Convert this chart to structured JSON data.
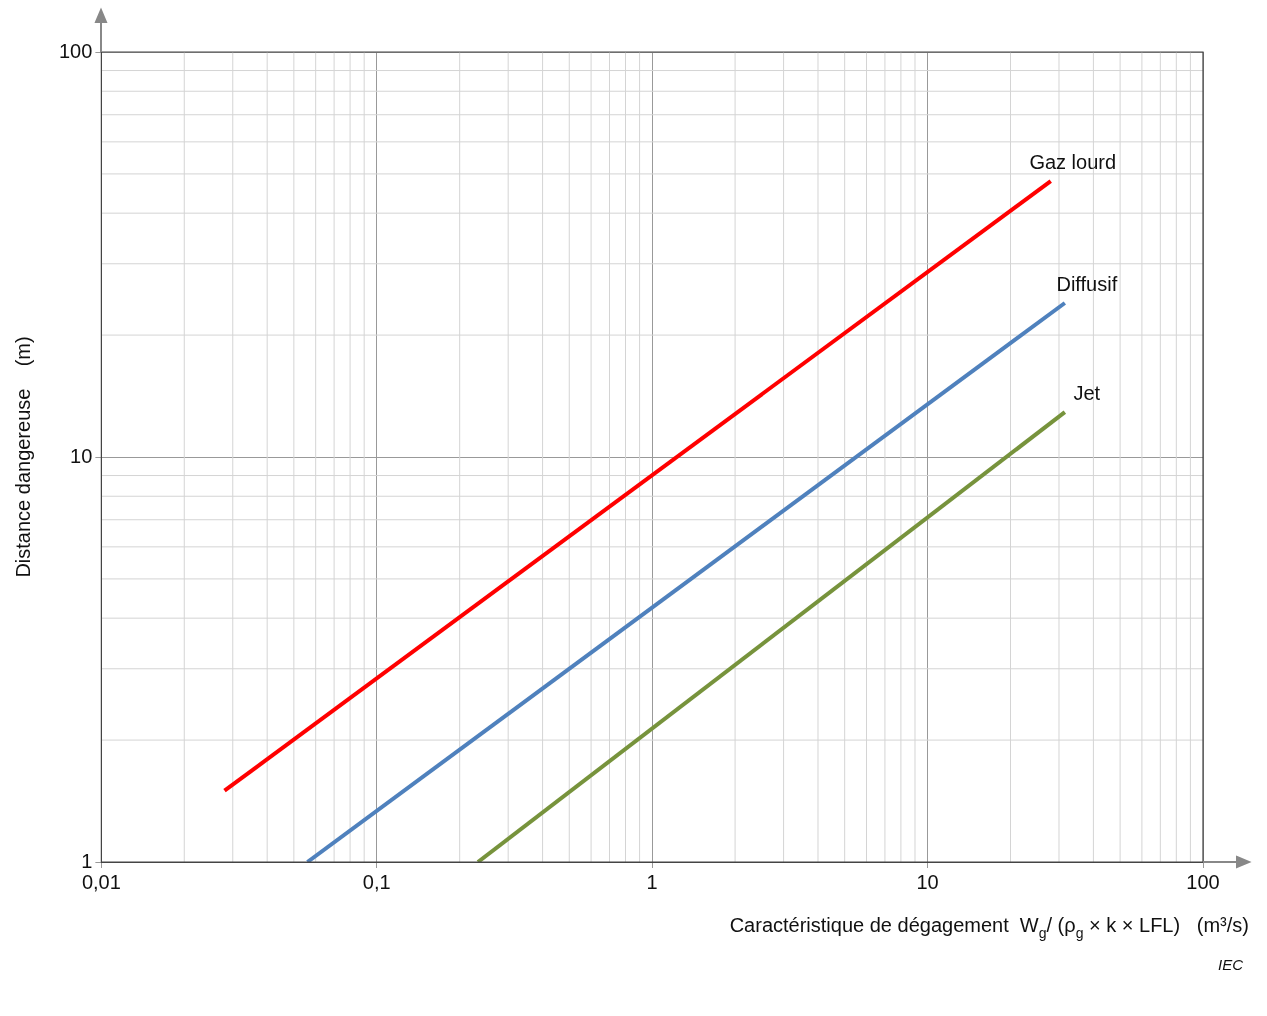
{
  "chart_data": {
    "type": "line",
    "xlabel": "Caractéristique de dégagement  W$_{g}$/ (ρ$_{g}$ × k × LFL)   (m³/s)",
    "ylabel": "Distance dangereuse    (m)",
    "log": "xy",
    "grid": true,
    "legend": false,
    "marker": "none",
    "line_style": "solid",
    "xlim": [
      0.01,
      100
    ],
    "ylim": [
      1,
      100
    ],
    "xticks": [
      {
        "value": 0.01,
        "label": "0,01"
      },
      {
        "value": 0.1,
        "label": "0,1"
      },
      1,
      10,
      100
    ],
    "yticks": [
      1,
      10,
      100
    ],
    "series": [
      {
        "name": "Gaz lourd",
        "color": "#ff0000",
        "x": [
          0.028,
          28
        ],
        "values": [
          1.5,
          48
        ]
      },
      {
        "name": "Diffusif",
        "color": "#4f81bd",
        "x": [
          0.056,
          31.5
        ],
        "values": [
          1,
          24
        ]
      },
      {
        "name": "Jet",
        "color": "#77933c",
        "x": [
          0.233,
          31.5
        ],
        "values": [
          1,
          12.9
        ]
      }
    ],
    "annotations": [
      "IEC"
    ]
  }
}
